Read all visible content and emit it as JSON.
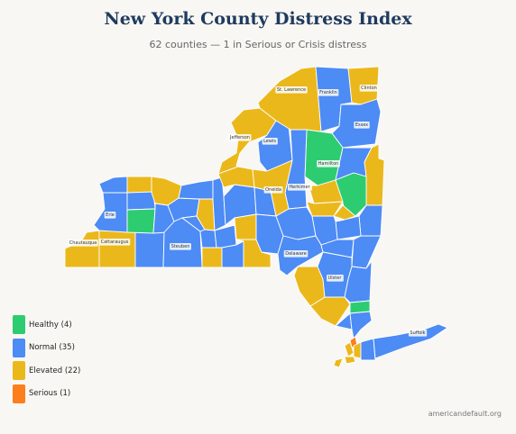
{
  "title": "New York County Distress Index",
  "subtitle": "62 counties — 1 in Serious or Crisis distress",
  "credit": "americandefault.org",
  "colors": {
    "healthy": "#2ecc71",
    "normal": "#4d8bf5",
    "elevated": "#ebb81c",
    "serious": "#fd7e1c"
  },
  "legend": [
    {
      "label": "Healthy (4)",
      "color": "#2ecc71"
    },
    {
      "label": "Normal (35)",
      "color": "#4d8bf5"
    },
    {
      "label": "Elevated (22)",
      "color": "#ebb81c"
    },
    {
      "label": "Serious (1)",
      "color": "#fd7e1c"
    }
  ],
  "county_labels": {
    "st_lawrence": "St. Lawrence",
    "franklin": "Franklin",
    "clinton": "Clinton",
    "essex": "Essex",
    "jefferson": "Jefferson",
    "lewis": "Lewis",
    "hamilton": "Hamilton",
    "oneida": "Oneida",
    "herkimer": "Herkimer",
    "erie": "Erie",
    "chautauqua": "Chautauqua",
    "cattaraugus": "Cattaraugus",
    "steuben": "Steuben",
    "delaware": "Delaware",
    "ulster": "Ulster",
    "suffolk": "Suffolk"
  }
}
